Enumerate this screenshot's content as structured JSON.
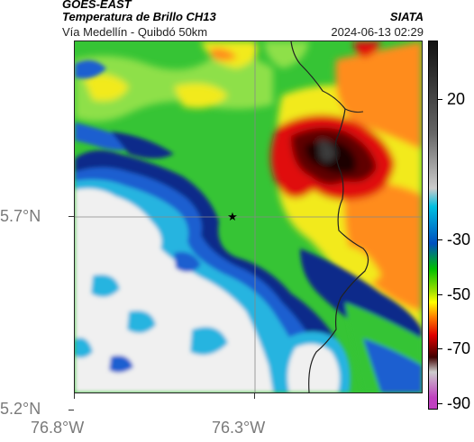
{
  "header": {
    "satellite": "GOES-EAST",
    "product": "Temperatura de Brillo CH13",
    "region": "Vía Medellín - Quibdó 50km",
    "org": "SIATA",
    "timestamp": "2024-06-13 02:29"
  },
  "axes": {
    "y_labels": [
      "5.7°N",
      "5.2°N"
    ],
    "x_labels": [
      "76.8°W",
      "76.3°W"
    ]
  },
  "colorbar": {
    "labels": [
      "20",
      "-30",
      "-50",
      "-70",
      "-90"
    ],
    "colors": [
      "#111111",
      "#666666",
      "#cccccc",
      "#00c0e0",
      "#0050c0",
      "#00c000",
      "#a0e000",
      "#ffff00",
      "#ff8000",
      "#e00000",
      "#400000",
      "#c040c0"
    ]
  },
  "map": {
    "marker_symbol": "★",
    "colors": {
      "white": "#f0f0f0",
      "cyan": "#28b4e0",
      "blue": "#1a5fd0",
      "navy": "#0a2a8a",
      "green": "#2ec42e",
      "lightgreen": "#8ee04a",
      "yellow": "#f2ea1e",
      "orange": "#ff8c1a",
      "red": "#e01010",
      "darkred": "#600000",
      "black": "#1a0000"
    }
  }
}
